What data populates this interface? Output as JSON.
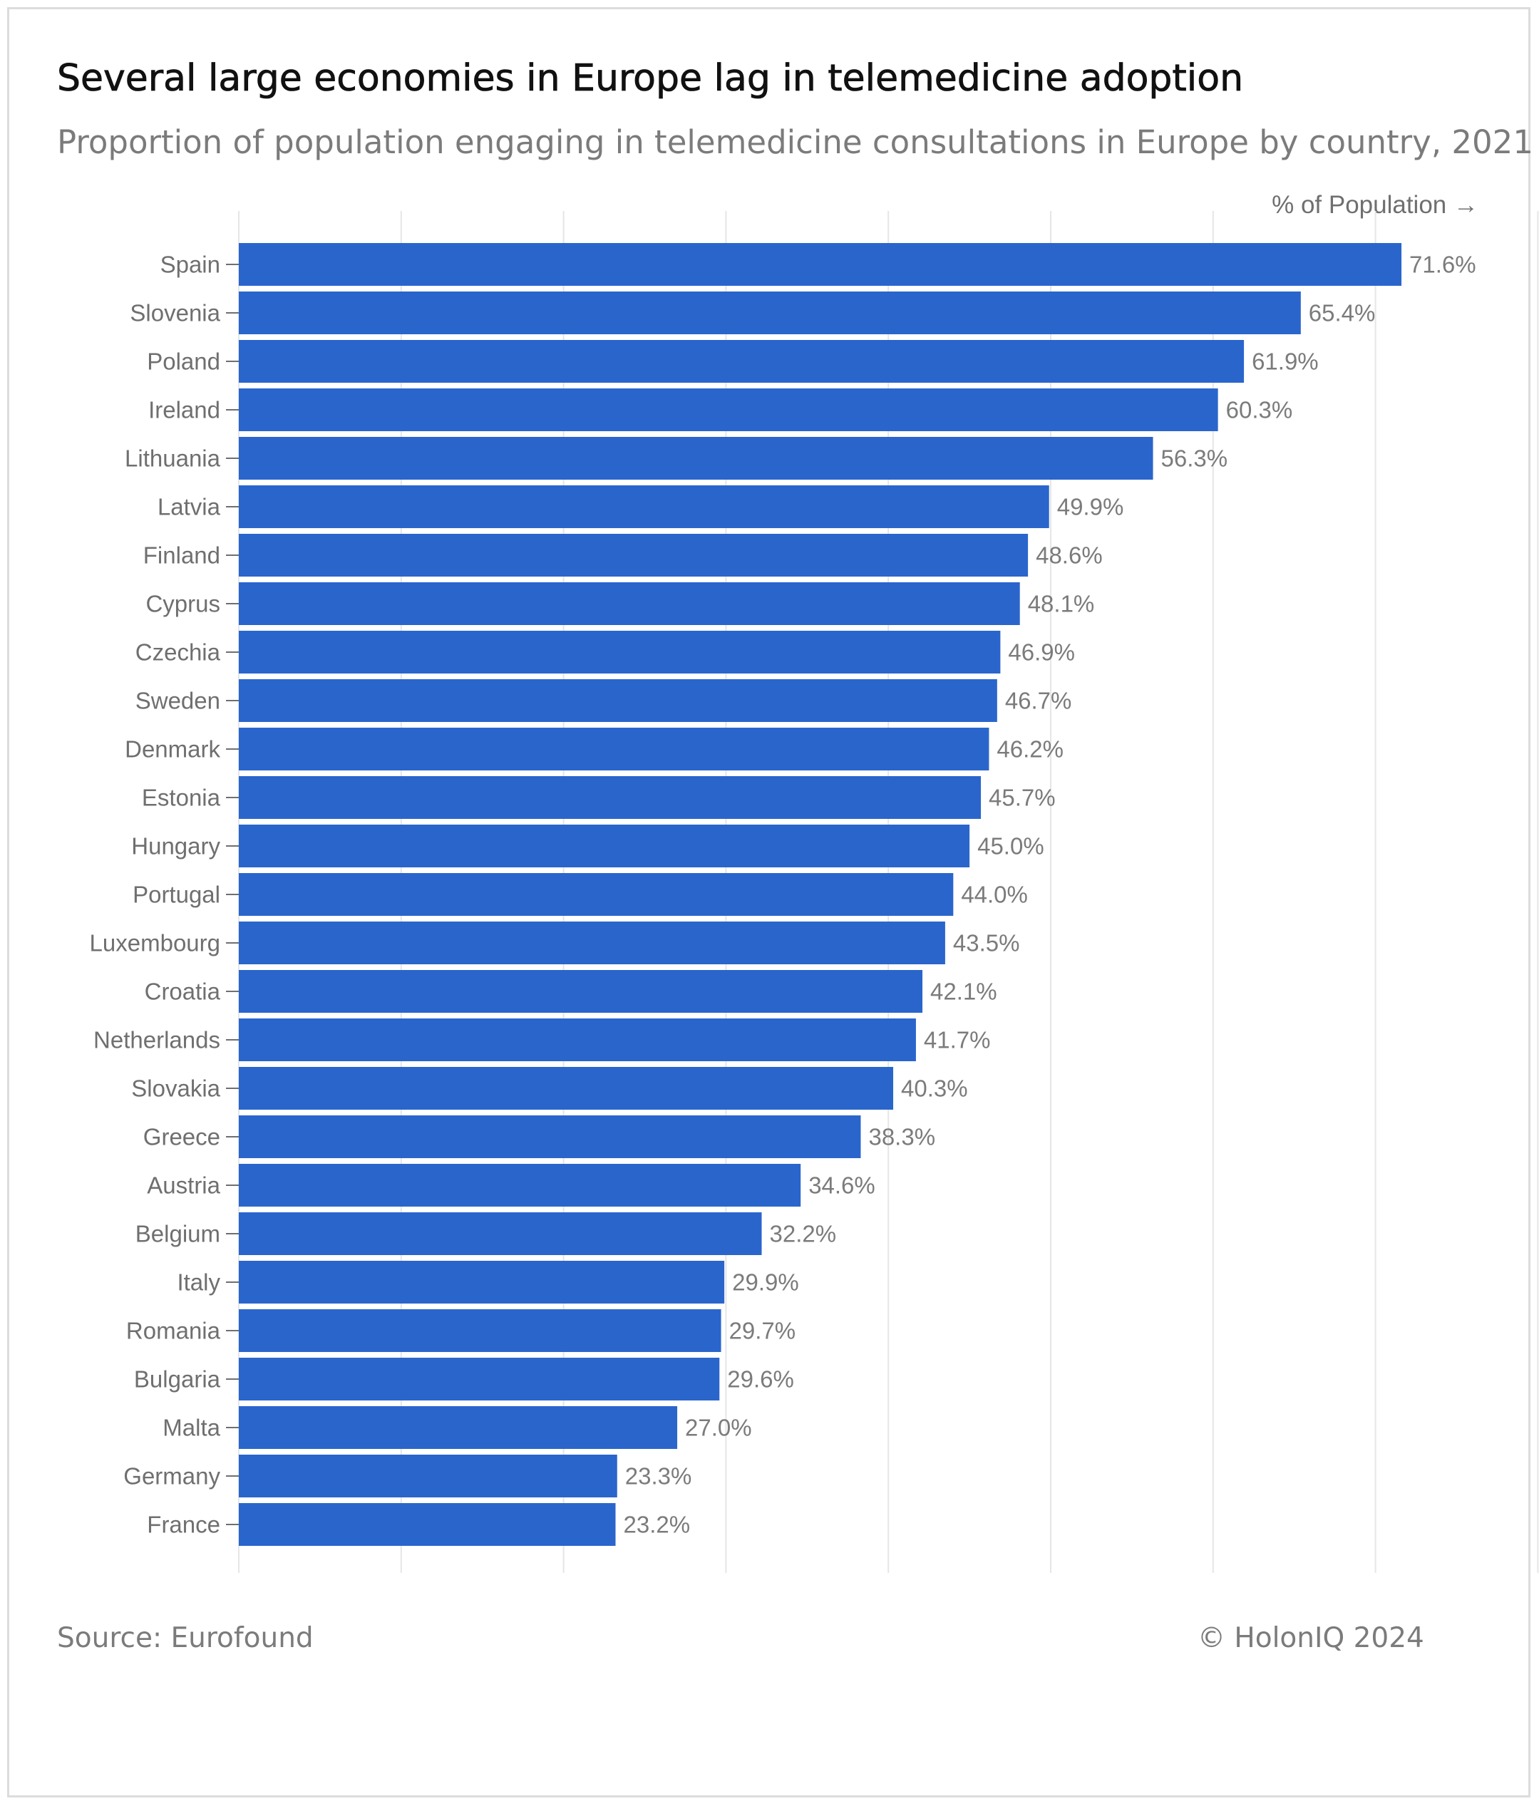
{
  "header": {
    "title": "Several large economies in Europe lag in telemedicine adoption",
    "subtitle": "Proportion of population engaging in telemedicine consultations in Europe by country, 2021",
    "axis_label": "% of Population →"
  },
  "footer": {
    "source": "Source: Eurofound",
    "copyright": "© HolonIQ 2024"
  },
  "colors": {
    "bar": "#2a65cc",
    "grid": "#e6e6e6",
    "tick_text": "#6f6f6f",
    "value_text": "#7b7b7b"
  },
  "chart_data": {
    "type": "bar",
    "orientation": "horizontal",
    "title": "Several large economies in Europe lag in telemedicine adoption",
    "subtitle": "Proportion of population engaging in telemedicine consultations in Europe by country, 2021",
    "xlabel": "% of Population →",
    "ylabel": "",
    "xlim": [
      0,
      80
    ],
    "grid": true,
    "value_suffix": "%",
    "categories": [
      "Spain",
      "Slovenia",
      "Poland",
      "Ireland",
      "Lithuania",
      "Latvia",
      "Finland",
      "Cyprus",
      "Czechia",
      "Sweden",
      "Denmark",
      "Estonia",
      "Hungary",
      "Portugal",
      "Luxembourg",
      "Croatia",
      "Netherlands",
      "Slovakia",
      "Greece",
      "Austria",
      "Belgium",
      "Italy",
      "Romania",
      "Bulgaria",
      "Malta",
      "Germany",
      "France"
    ],
    "values": [
      71.6,
      65.4,
      61.9,
      60.3,
      56.3,
      49.9,
      48.6,
      48.1,
      46.9,
      46.7,
      46.2,
      45.7,
      45.0,
      44.0,
      43.5,
      42.1,
      41.7,
      40.3,
      38.3,
      34.6,
      32.2,
      29.9,
      29.7,
      29.6,
      27.0,
      23.3,
      23.2
    ],
    "labels": [
      "71.6%",
      "65.4%",
      "61.9%",
      "60.3%",
      "56.3%",
      "49.9%",
      "48.6%",
      "48.1%",
      "46.9%",
      "46.7%",
      "46.2%",
      "45.7%",
      "45.0%",
      "44.0%",
      "43.5%",
      "42.1%",
      "41.7%",
      "40.3%",
      "38.3%",
      "34.6%",
      "32.2%",
      "29.9%",
      "29.7%",
      "29.6%",
      "27.0%",
      "23.3%",
      "23.2%"
    ]
  }
}
